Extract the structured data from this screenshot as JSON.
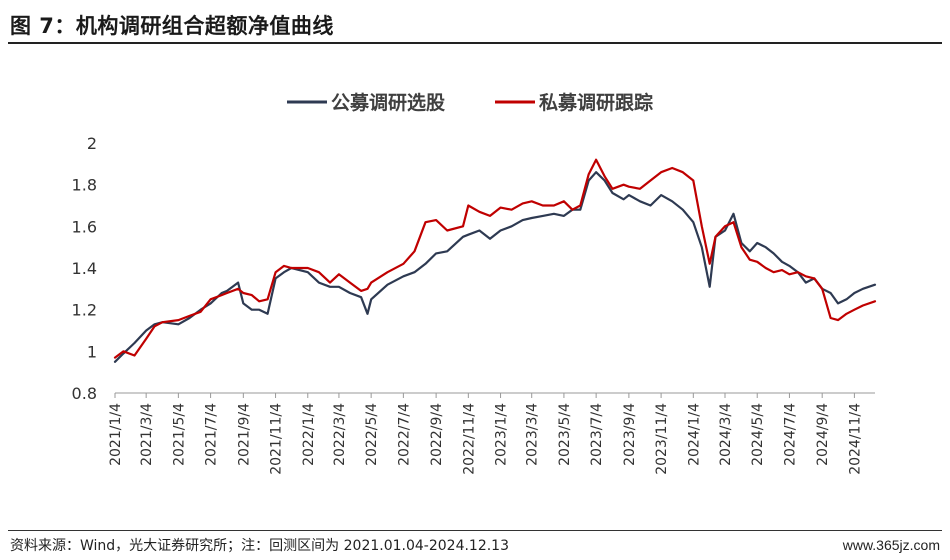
{
  "header": {
    "title": "图 7：机构调研组合超额净值曲线"
  },
  "footer": {
    "source": "资料来源：Wind，光大证券研究所；注：回测区间为 2021.01.04-2024.12.13",
    "watermark": "www.365jz.com"
  },
  "colors": {
    "public": "#2e3a52",
    "private": "#c00000",
    "axis": "#999999"
  },
  "chart_data": {
    "type": "line",
    "title": "",
    "xlabel": "",
    "ylabel": "",
    "ylim": [
      0.8,
      2.0
    ],
    "yticks": [
      0.8,
      1,
      1.2,
      1.4,
      1.6,
      1.8,
      2
    ],
    "ytick_labels": [
      "0.8",
      "1",
      "1.2",
      "1.4",
      "1.6",
      "1.8",
      "2"
    ],
    "xlim": [
      "2021-01-04",
      "2024-12-13"
    ],
    "xticks": [
      "2021-01-04",
      "2021-03-04",
      "2021-05-04",
      "2021-07-04",
      "2021-09-04",
      "2021-11-04",
      "2022-01-04",
      "2022-03-04",
      "2022-05-04",
      "2022-07-04",
      "2022-09-04",
      "2022-11-04",
      "2023-01-04",
      "2023-03-04",
      "2023-05-04",
      "2023-07-04",
      "2023-09-04",
      "2023-11-04",
      "2024-01-04",
      "2024-03-04",
      "2024-05-04",
      "2024-07-04",
      "2024-09-04",
      "2024-11-04"
    ],
    "xtick_labels": [
      "2021/1/4",
      "2021/3/4",
      "2021/5/4",
      "2021/7/4",
      "2021/9/4",
      "2021/11/4",
      "2022/1/4",
      "2022/3/4",
      "2022/5/4",
      "2022/7/4",
      "2022/9/4",
      "2022/11/4",
      "2023/1/4",
      "2023/3/4",
      "2023/5/4",
      "2023/7/4",
      "2023/9/4",
      "2023/11/4",
      "2024/1/4",
      "2024/3/4",
      "2024/5/4",
      "2024/7/4",
      "2024/9/4",
      "2024/11/4"
    ],
    "grid": false,
    "legend_position": "top-center",
    "series": [
      {
        "name": "公募调研选股",
        "color": "#2e3a52",
        "x": [
          "2021-01-04",
          "2021-01-20",
          "2021-02-10",
          "2021-03-04",
          "2021-03-20",
          "2021-04-04",
          "2021-05-04",
          "2021-05-25",
          "2021-06-15",
          "2021-07-04",
          "2021-07-25",
          "2021-08-04",
          "2021-08-25",
          "2021-09-04",
          "2021-09-20",
          "2021-10-04",
          "2021-10-20",
          "2021-11-04",
          "2021-11-20",
          "2021-12-04",
          "2022-01-04",
          "2022-01-25",
          "2022-02-15",
          "2022-03-04",
          "2022-03-25",
          "2022-04-15",
          "2022-04-27",
          "2022-05-04",
          "2022-06-04",
          "2022-07-04",
          "2022-07-25",
          "2022-08-15",
          "2022-09-04",
          "2022-09-25",
          "2022-10-25",
          "2022-11-04",
          "2022-11-25",
          "2022-12-15",
          "2023-01-04",
          "2023-01-25",
          "2023-02-15",
          "2023-03-04",
          "2023-03-25",
          "2023-04-15",
          "2023-05-04",
          "2023-05-20",
          "2023-06-04",
          "2023-06-20",
          "2023-07-04",
          "2023-07-20",
          "2023-08-04",
          "2023-08-25",
          "2023-09-04",
          "2023-09-25",
          "2023-10-15",
          "2023-11-04",
          "2023-11-25",
          "2023-12-15",
          "2024-01-04",
          "2024-01-20",
          "2024-02-04",
          "2024-02-15",
          "2024-03-04",
          "2024-03-20",
          "2024-04-04",
          "2024-04-20",
          "2024-05-04",
          "2024-05-20",
          "2024-06-04",
          "2024-06-20",
          "2024-07-04",
          "2024-07-20",
          "2024-08-04",
          "2024-08-20",
          "2024-09-04",
          "2024-09-20",
          "2024-10-04",
          "2024-10-20",
          "2024-11-04",
          "2024-11-20",
          "2024-12-13"
        ],
        "values": [
          0.95,
          0.99,
          1.04,
          1.1,
          1.13,
          1.14,
          1.13,
          1.16,
          1.2,
          1.23,
          1.28,
          1.29,
          1.33,
          1.23,
          1.2,
          1.2,
          1.18,
          1.35,
          1.38,
          1.4,
          1.38,
          1.33,
          1.31,
          1.31,
          1.28,
          1.26,
          1.18,
          1.25,
          1.32,
          1.36,
          1.38,
          1.42,
          1.47,
          1.48,
          1.55,
          1.56,
          1.58,
          1.54,
          1.58,
          1.6,
          1.63,
          1.64,
          1.65,
          1.66,
          1.65,
          1.68,
          1.68,
          1.82,
          1.86,
          1.82,
          1.76,
          1.73,
          1.75,
          1.72,
          1.7,
          1.75,
          1.72,
          1.68,
          1.62,
          1.5,
          1.31,
          1.55,
          1.58,
          1.66,
          1.52,
          1.48,
          1.52,
          1.5,
          1.47,
          1.43,
          1.41,
          1.38,
          1.33,
          1.35,
          1.3,
          1.28,
          1.23,
          1.25,
          1.28,
          1.3,
          1.32
        ]
      },
      {
        "name": "私募调研跟踪",
        "color": "#c00000",
        "x": [
          "2021-01-04",
          "2021-01-20",
          "2021-02-10",
          "2021-03-04",
          "2021-03-20",
          "2021-04-04",
          "2021-05-04",
          "2021-05-25",
          "2021-06-15",
          "2021-07-04",
          "2021-07-25",
          "2021-08-04",
          "2021-08-25",
          "2021-09-04",
          "2021-09-20",
          "2021-10-04",
          "2021-10-20",
          "2021-11-04",
          "2021-11-20",
          "2021-12-04",
          "2022-01-04",
          "2022-01-25",
          "2022-02-15",
          "2022-03-04",
          "2022-03-25",
          "2022-04-15",
          "2022-04-27",
          "2022-05-04",
          "2022-06-04",
          "2022-07-04",
          "2022-07-25",
          "2022-08-15",
          "2022-09-04",
          "2022-09-25",
          "2022-10-25",
          "2022-11-04",
          "2022-11-25",
          "2022-12-15",
          "2023-01-04",
          "2023-01-25",
          "2023-02-15",
          "2023-03-04",
          "2023-03-25",
          "2023-04-15",
          "2023-05-04",
          "2023-05-20",
          "2023-06-04",
          "2023-06-20",
          "2023-07-04",
          "2023-07-20",
          "2023-08-04",
          "2023-08-25",
          "2023-09-04",
          "2023-09-25",
          "2023-10-15",
          "2023-11-04",
          "2023-11-25",
          "2023-12-15",
          "2024-01-04",
          "2024-01-20",
          "2024-02-04",
          "2024-02-15",
          "2024-03-04",
          "2024-03-20",
          "2024-04-04",
          "2024-04-20",
          "2024-05-04",
          "2024-05-20",
          "2024-06-04",
          "2024-06-20",
          "2024-07-04",
          "2024-07-20",
          "2024-08-04",
          "2024-08-20",
          "2024-09-04",
          "2024-09-20",
          "2024-10-04",
          "2024-10-20",
          "2024-11-04",
          "2024-11-20",
          "2024-12-13"
        ],
        "values": [
          0.97,
          1.0,
          0.98,
          1.06,
          1.12,
          1.14,
          1.15,
          1.17,
          1.19,
          1.25,
          1.27,
          1.28,
          1.3,
          1.28,
          1.27,
          1.24,
          1.25,
          1.38,
          1.41,
          1.4,
          1.4,
          1.38,
          1.33,
          1.37,
          1.33,
          1.29,
          1.3,
          1.33,
          1.38,
          1.42,
          1.48,
          1.62,
          1.63,
          1.58,
          1.6,
          1.7,
          1.67,
          1.65,
          1.69,
          1.68,
          1.71,
          1.72,
          1.7,
          1.7,
          1.72,
          1.68,
          1.7,
          1.85,
          1.92,
          1.84,
          1.78,
          1.8,
          1.79,
          1.78,
          1.82,
          1.86,
          1.88,
          1.86,
          1.82,
          1.6,
          1.42,
          1.55,
          1.6,
          1.62,
          1.5,
          1.44,
          1.43,
          1.4,
          1.38,
          1.39,
          1.37,
          1.38,
          1.36,
          1.35,
          1.3,
          1.16,
          1.15,
          1.18,
          1.2,
          1.22,
          1.24
        ]
      }
    ]
  }
}
